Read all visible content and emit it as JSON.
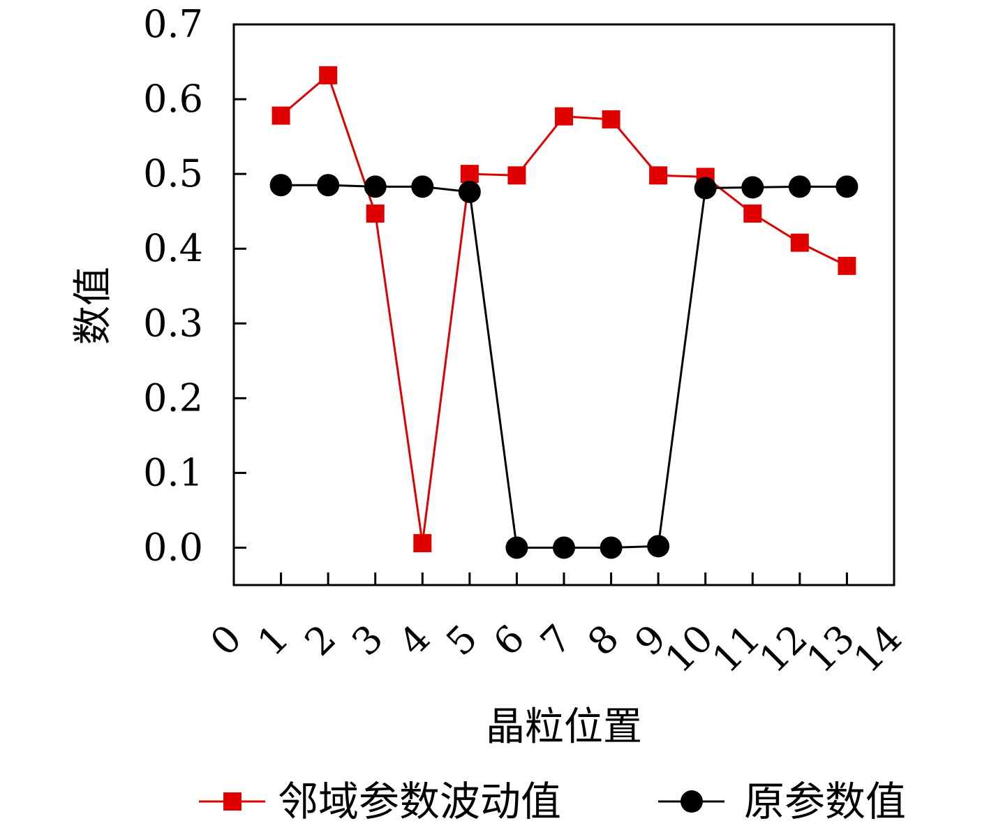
{
  "chart_data": {
    "type": "line",
    "xlabel": "晶粒位置",
    "ylabel": "数值",
    "xlim": [
      0,
      14
    ],
    "ylim": [
      -0.05,
      0.7
    ],
    "xticks": [
      "0",
      "1",
      "2",
      "3",
      "4",
      "5",
      "6",
      "7",
      "8",
      "9",
      "10",
      "11",
      "12",
      "13",
      "14"
    ],
    "yticks": [
      "0.0",
      "0.1",
      "0.2",
      "0.3",
      "0.4",
      "0.5",
      "0.6",
      "0.7"
    ],
    "legend_position": "bottom",
    "grid": false,
    "series": [
      {
        "name": "邻域参数波动值",
        "color": "#e00000",
        "marker": "square",
        "x": [
          1,
          2,
          3,
          4,
          5,
          6,
          7,
          8,
          9,
          10,
          11,
          12,
          13
        ],
        "values": [
          0.578,
          0.632,
          0.447,
          0.006,
          0.5,
          0.498,
          0.577,
          0.573,
          0.498,
          0.496,
          0.447,
          0.408,
          0.377
        ]
      },
      {
        "name": "原参数值",
        "color": "#000000",
        "marker": "circle",
        "x": [
          1,
          2,
          3,
          4,
          5,
          6,
          7,
          8,
          9,
          10,
          11,
          12,
          13
        ],
        "values": [
          0.485,
          0.485,
          0.483,
          0.483,
          0.476,
          0.0,
          0.0,
          0.0,
          0.002,
          0.481,
          0.482,
          0.483,
          0.483
        ]
      }
    ]
  }
}
